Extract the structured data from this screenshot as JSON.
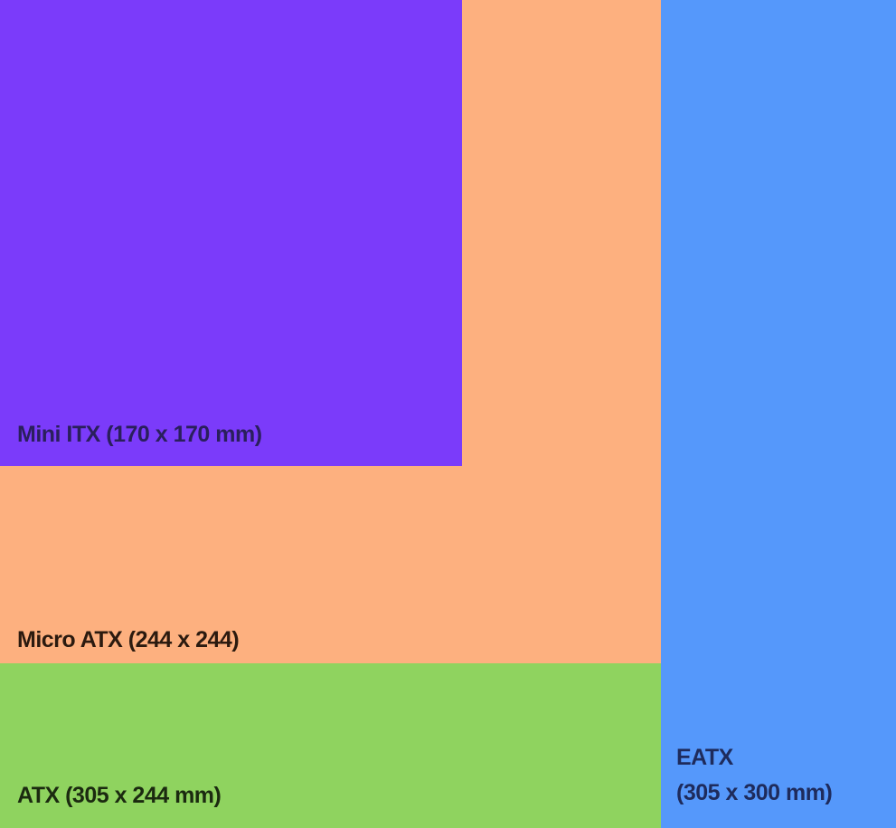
{
  "boards": [
    {
      "id": "mini-itx",
      "label": "Mini ITX (170 x 170 mm)",
      "color": "#7b3bfa",
      "text_color": "#2a1f5c"
    },
    {
      "id": "micro-atx",
      "label": "Micro ATX (244 x 244)",
      "color": "#fdb07f",
      "text_color": "#2b1a0f"
    },
    {
      "id": "atx",
      "label": "ATX (305 x 244 mm)",
      "color": "#8fd35f",
      "text_color": "#1b2a10"
    },
    {
      "id": "eatx",
      "label_line1": "EATX",
      "label_line2": "(305 x 300 mm)",
      "color": "#5598fb",
      "text_color": "#1e2b5c"
    }
  ]
}
